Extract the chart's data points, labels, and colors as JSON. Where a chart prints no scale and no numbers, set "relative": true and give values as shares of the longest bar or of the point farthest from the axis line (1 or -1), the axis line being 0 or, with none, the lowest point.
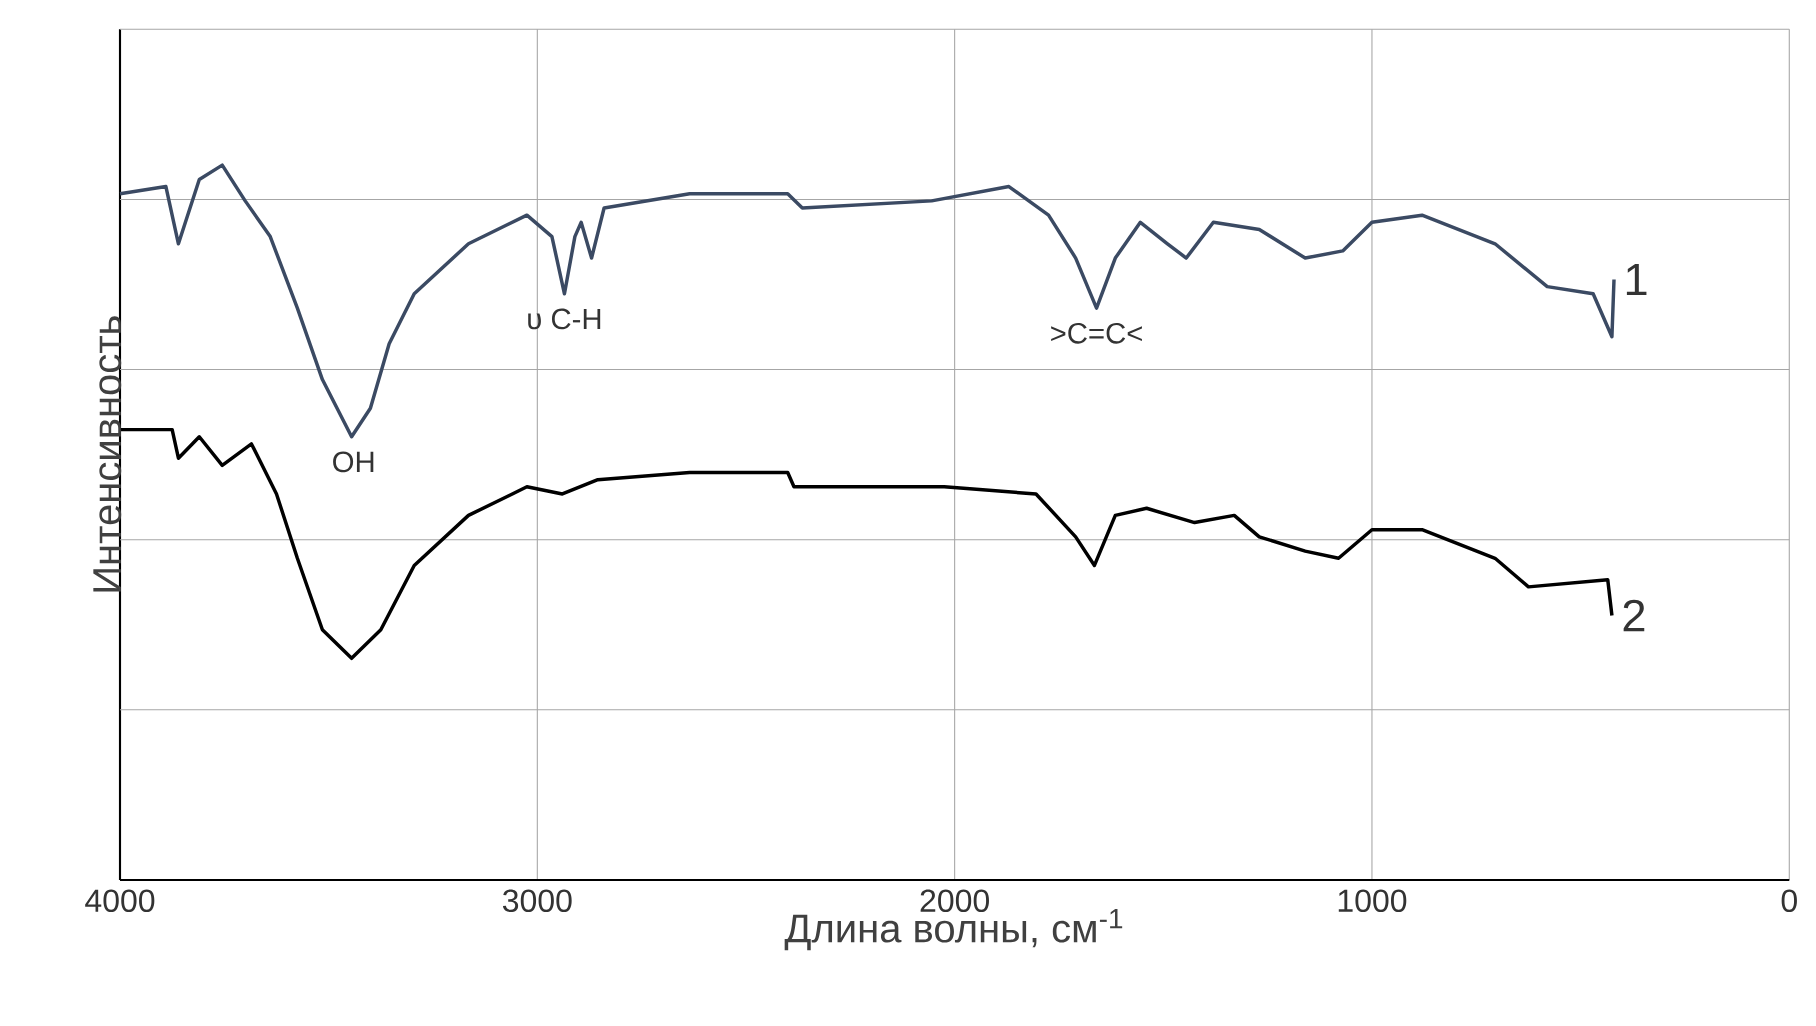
{
  "chart_data": {
    "type": "line",
    "xlabel": "Длина волны, см$^{-1}$",
    "ylabel": "Интенсивность",
    "relative": true,
    "xlim": [
      4000,
      0
    ],
    "xticks": [
      4000,
      3000,
      2000,
      1000,
      0
    ],
    "grid": true,
    "marker": "none",
    "line_style": "solid",
    "annotations": [
      {
        "text": "OH",
        "x": 3440,
        "y": 0.62
      },
      {
        "text": "υ C-H",
        "x": 2935,
        "y": 0.82
      },
      {
        "text": ">C=C<",
        "x": 1660,
        "y": 0.8
      }
    ],
    "series": [
      {
        "name": "1",
        "color": "#3b4a63",
        "x": [
          4000,
          3890,
          3860,
          3810,
          3755,
          3700,
          3640,
          3575,
          3515,
          3445,
          3400,
          3355,
          3295,
          3165,
          3025,
          2965,
          2935,
          2910,
          2895,
          2870,
          2840,
          2635,
          2400,
          2365,
          2055,
          1870,
          1775,
          1710,
          1660,
          1615,
          1555,
          1490,
          1445,
          1380,
          1270,
          1160,
          1070,
          1000,
          880,
          705,
          580,
          470,
          425,
          420
        ],
        "values": [
          0.96,
          0.97,
          0.89,
          0.98,
          1.0,
          0.95,
          0.9,
          0.8,
          0.7,
          0.62,
          0.66,
          0.75,
          0.82,
          0.89,
          0.93,
          0.9,
          0.82,
          0.9,
          0.92,
          0.87,
          0.94,
          0.96,
          0.96,
          0.94,
          0.95,
          0.97,
          0.93,
          0.87,
          0.8,
          0.87,
          0.92,
          0.89,
          0.87,
          0.92,
          0.91,
          0.87,
          0.88,
          0.92,
          0.93,
          0.89,
          0.83,
          0.82,
          0.76,
          0.84
        ]
      },
      {
        "name": "2",
        "color": "#000000",
        "x": [
          4000,
          3875,
          3860,
          3810,
          3755,
          3685,
          3625,
          3575,
          3515,
          3445,
          3375,
          3295,
          3165,
          3025,
          2940,
          2855,
          2635,
          2400,
          2385,
          2025,
          1805,
          1710,
          1665,
          1615,
          1540,
          1425,
          1330,
          1270,
          1160,
          1080,
          1000,
          880,
          705,
          625,
          435,
          425
        ],
        "values": [
          0.63,
          0.63,
          0.59,
          0.62,
          0.58,
          0.61,
          0.54,
          0.45,
          0.35,
          0.31,
          0.35,
          0.44,
          0.51,
          0.55,
          0.54,
          0.56,
          0.57,
          0.57,
          0.55,
          0.55,
          0.54,
          0.48,
          0.44,
          0.51,
          0.52,
          0.5,
          0.51,
          0.48,
          0.46,
          0.45,
          0.49,
          0.49,
          0.45,
          0.41,
          0.42,
          0.37
        ]
      }
    ]
  }
}
